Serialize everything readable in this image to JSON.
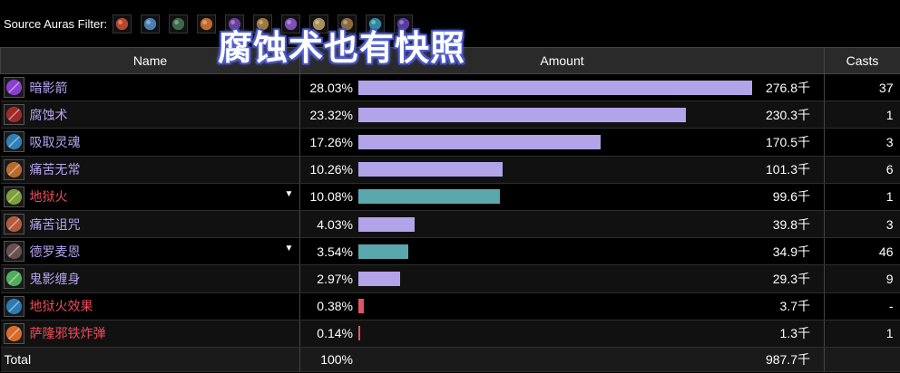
{
  "filter": {
    "label": "Source Auras Filter:",
    "icons": [
      {
        "name": "fire-bottle-icon",
        "color": "#b5482e"
      },
      {
        "name": "swirl-icon",
        "color": "#4a7fb0"
      },
      {
        "name": "green-skull-icon",
        "color": "#3c6b4b"
      },
      {
        "name": "orange-blade-icon",
        "color": "#c26a2b"
      },
      {
        "name": "purple-star-icon",
        "color": "#6a3f9e"
      },
      {
        "name": "gold-beast-icon",
        "color": "#9d7a3a"
      },
      {
        "name": "violet-burst-icon",
        "color": "#7e4fb8"
      },
      {
        "name": "tan-glyph-icon",
        "color": "#a98f5d"
      },
      {
        "name": "brown-rune-icon",
        "color": "#8b6a3c"
      },
      {
        "name": "teal-orb-icon",
        "color": "#2f8aa0"
      },
      {
        "name": "indigo-eye-icon",
        "color": "#5b3aa0"
      }
    ]
  },
  "overlay_title": "腐蚀术也有快照",
  "table": {
    "headers": {
      "name": "Name",
      "amount": "Amount",
      "casts": "Casts"
    },
    "rows": [
      {
        "icon": "shadow-bolt-icon",
        "icon_color": "#8a3fcf",
        "name": "暗影箭",
        "style": "normal",
        "pct": "28.03%",
        "frac": 1.0,
        "bar_color": "#b3a3e8",
        "amount": "276.8千",
        "casts": "37",
        "caret": false
      },
      {
        "icon": "corruption-icon",
        "icon_color": "#a02a2a",
        "name": "腐蚀术",
        "style": "normal",
        "pct": "23.32%",
        "frac": 0.832,
        "bar_color": "#b3a3e8",
        "amount": "230.3千",
        "casts": "1",
        "caret": false
      },
      {
        "icon": "drain-soul-icon",
        "icon_color": "#2f7fb8",
        "name": "吸取灵魂",
        "style": "normal",
        "pct": "17.26%",
        "frac": 0.616,
        "bar_color": "#b3a3e8",
        "amount": "170.5千",
        "casts": "3",
        "caret": false
      },
      {
        "icon": "unstable-affliction-icon",
        "icon_color": "#b86a2a",
        "name": "痛苦无常",
        "style": "normal",
        "pct": "10.26%",
        "frac": 0.366,
        "bar_color": "#b3a3e8",
        "amount": "101.3千",
        "casts": "6",
        "caret": false
      },
      {
        "icon": "hellfire-icon",
        "icon_color": "#7ea03a",
        "name": "地狱火",
        "style": "fire",
        "pct": "10.08%",
        "frac": 0.36,
        "bar_color": "#5aa8ad",
        "amount": "99.6千",
        "casts": "1",
        "caret": true
      },
      {
        "icon": "curse-of-agony-icon",
        "icon_color": "#b55a3a",
        "name": "痛苦诅咒",
        "style": "normal",
        "pct": "4.03%",
        "frac": 0.144,
        "bar_color": "#b3a3e8",
        "amount": "39.8千",
        "casts": "3",
        "caret": false
      },
      {
        "icon": "demon-icon",
        "icon_color": "#6a5050",
        "name": "德罗麦恩",
        "style": "normal",
        "pct": "3.54%",
        "frac": 0.126,
        "bar_color": "#5aa8ad",
        "amount": "34.9千",
        "casts": "46",
        "caret": true
      },
      {
        "icon": "haunt-icon",
        "icon_color": "#4fae5a",
        "name": "鬼影缠身",
        "style": "normal",
        "pct": "2.97%",
        "frac": 0.106,
        "bar_color": "#b3a3e8",
        "amount": "29.3千",
        "casts": "9",
        "caret": false
      },
      {
        "icon": "hellfire-effect-icon",
        "icon_color": "#2b7ab5",
        "name": "地狱火效果",
        "style": "fire",
        "pct": "0.38%",
        "frac": 0.014,
        "bar_color": "#e05565",
        "amount": "3.7千",
        "casts": "-",
        "caret": false
      },
      {
        "icon": "fel-bomb-icon",
        "icon_color": "#d86a2a",
        "name": "萨隆邪铁炸弹",
        "style": "fire",
        "pct": "0.14%",
        "frac": 0.005,
        "bar_color": "#e05565",
        "amount": "1.3千",
        "casts": "1",
        "caret": false
      }
    ],
    "total": {
      "label": "Total",
      "pct": "100%",
      "amount": "987.7千"
    }
  }
}
